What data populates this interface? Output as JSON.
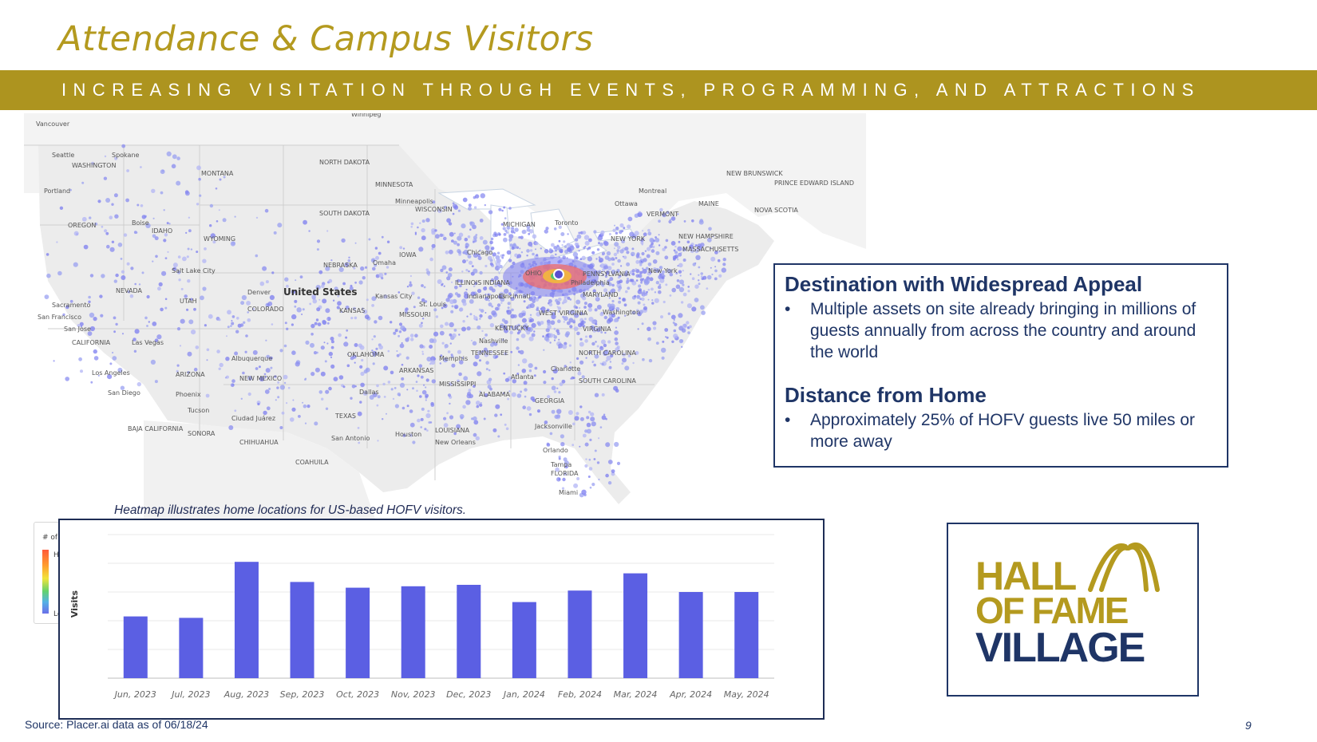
{
  "title": "Attendance & Campus Visitors",
  "banner": "INCREASING VISITATION THROUGH EVENTS, PROGRAMMING, AND ATTRACTIONS",
  "map": {
    "caption": "Heatmap illustrates home locations for US-based HOFV visitors.",
    "legend": {
      "title": "# of Visitors",
      "high": "High",
      "low": "Low"
    },
    "country_label": "United States",
    "labels": [
      "Winnipeg",
      "Vancouver",
      "Seattle",
      "Spokane",
      "WASHINGTON",
      "Portland",
      "OREGON",
      "Boise",
      "IDAHO",
      "MONTANA",
      "NORTH DAKOTA",
      "SOUTH DAKOTA",
      "MINNESOTA",
      "Minneapolis",
      "WISCONSIN",
      "MICHIGAN",
      "Toronto",
      "Ottawa",
      "Montreal",
      "NEW BRUNSWICK",
      "PRINCE EDWARD ISLAND",
      "NOVA SCOTIA",
      "MAINE",
      "VERMONT",
      "NEW HAMPSHIRE",
      "MASSACHUSETTS",
      "NEW YORK",
      "New York",
      "Philadelphia",
      "PENNSYLVANIA",
      "MARYLAND",
      "Washington",
      "OHIO",
      "Cincinnati",
      "Chicago",
      "ILLINOIS",
      "INDIANA",
      "Indianapolis",
      "IOWA",
      "NEBRASKA",
      "Omaha",
      "WYOMING",
      "Salt Lake City",
      "NEVADA",
      "UTAH",
      "Denver",
      "COLORADO",
      "KANSAS",
      "Kansas City",
      "MISSOURI",
      "St. Louis",
      "Sacramento",
      "San Francisco",
      "San Jose",
      "CALIFORNIA",
      "Las Vegas",
      "Los Angeles",
      "San Diego",
      "ARIZONA",
      "Phoenix",
      "Tucson",
      "Albuquerque",
      "NEW MEXICO",
      "OKLAHOMA",
      "TEXAS",
      "Dallas",
      "Houston",
      "San Antonio",
      "Ciudad Juárez",
      "CHIHUAHUA",
      "SONORA",
      "BAJA CALIFORNIA",
      "COAHUILA",
      "ARKANSAS",
      "Memphis",
      "TENNESSEE",
      "Nashville",
      "KENTUCKY",
      "WEST VIRGINIA",
      "VIRGINIA",
      "NORTH CAROLINA",
      "SOUTH CAROLINA",
      "Charlotte",
      "GEORGIA",
      "Atlanta",
      "ALABAMA",
      "MISSISSIPPI",
      "LOUISIANA",
      "New Orleans",
      "Jacksonville",
      "Orlando",
      "Tampa",
      "FLORIDA",
      "Miami"
    ]
  },
  "info": {
    "section1_heading": "Destination with Widespread Appeal",
    "section1_bullet": "Multiple assets on site already bringing in millions of guests annually from across the country and around the world",
    "section2_heading": "Distance from Home",
    "section2_bullet": "Approximately 25% of HOFV guests live 50 miles or more away",
    "bullet_glyph": "•"
  },
  "chart_data": {
    "type": "bar",
    "title": "",
    "xlabel": "",
    "ylabel": "Visits",
    "categories": [
      "Jun, 2023",
      "Jul, 2023",
      "Aug, 2023",
      "Sep, 2023",
      "Oct, 2023",
      "Nov, 2023",
      "Dec, 2023",
      "Jan, 2024",
      "Feb, 2024",
      "Mar, 2024",
      "Apr, 2024",
      "May, 2024"
    ],
    "values": [
      43,
      42,
      81,
      67,
      63,
      64,
      65,
      53,
      61,
      73,
      60,
      60
    ],
    "ylim": [
      0,
      100
    ],
    "grid": true,
    "y_tick_labels_shown": false,
    "bar_color": "#5b5fe3"
  },
  "logo": {
    "line1": "HALL",
    "line2": "OF FAME",
    "line3": "VILLAGE",
    "gold": "#b49a1f",
    "navy": "#1f3566"
  },
  "footer": {
    "source": "Source: Placer.ai data as of 06/18/24",
    "page": "9"
  },
  "colors": {
    "gold": "#ad941f",
    "navy": "#1f3566",
    "bar": "#5b5fe3"
  }
}
